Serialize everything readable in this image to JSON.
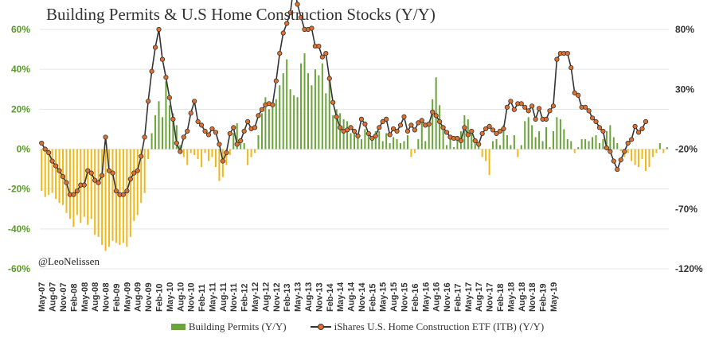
{
  "chart_data": {
    "type": "bar+line",
    "title": "Building Permits  & U.S Home Construction Stocks (Y/Y)",
    "annotation": "@LeoNelissen",
    "x_tick_labels": [
      "May-07",
      "Aug-07",
      "Nov-07",
      "Feb-08",
      "May-08",
      "Aug-08",
      "Nov-08",
      "Feb-09",
      "May-09",
      "Aug-09",
      "Nov-09",
      "Feb-10",
      "May-10",
      "Aug-10",
      "Nov-10",
      "Feb-11",
      "May-11",
      "Aug-11",
      "Nov-11",
      "Feb-12",
      "May-12",
      "Aug-12",
      "Nov-12",
      "Feb-13",
      "May-13",
      "Aug-13",
      "Nov-13",
      "Feb-14",
      "May-14",
      "Aug-14",
      "Nov-14",
      "Feb-15",
      "May-15",
      "Aug-15",
      "Nov-15",
      "Feb-16",
      "May-16",
      "Aug-16",
      "Nov-16",
      "Feb-17",
      "May-17",
      "Aug-17",
      "Nov-17",
      "Feb-18",
      "May-18",
      "Aug-18",
      "Nov-18",
      "Feb-19",
      "May-19"
    ],
    "left_axis": {
      "ticks": [
        "60%",
        "40%",
        "20%",
        "0%",
        "-20%",
        "-40%",
        "-60%"
      ],
      "ylim": [
        -60,
        60
      ]
    },
    "right_axis": {
      "ticks": [
        "80%",
        "30%",
        "-20%",
        "-70%",
        "-120%"
      ],
      "ylim": [
        -120,
        80
      ]
    },
    "colors": {
      "positive_bar": "#6aa43a",
      "negative_bar": "#f2b818",
      "line": "#333333",
      "marker": "#e0702d"
    },
    "series": [
      {
        "name": "Building Permits (Y/Y)",
        "axis": "left",
        "type": "bar",
        "values": [
          -21,
          -24,
          -23,
          -22,
          -25,
          -27,
          -28,
          -32,
          -35,
          -39,
          -33,
          -37,
          -34,
          -38,
          -35,
          -43,
          -44,
          -48,
          -51,
          -49,
          -46,
          -47,
          -48,
          -47,
          -49,
          -44,
          -36,
          -33,
          -27,
          -22,
          -5,
          8,
          17,
          24,
          16,
          34,
          22,
          18,
          12,
          2,
          -4,
          -8,
          -2,
          -3,
          -5,
          -9,
          -2,
          -6,
          -4,
          -9,
          -16,
          -14,
          -8,
          -3,
          8,
          13,
          5,
          3,
          -8,
          -4,
          -2,
          7,
          18,
          26,
          20,
          23,
          25,
          32,
          38,
          45,
          30,
          27,
          26,
          43,
          48,
          38,
          32,
          40,
          37,
          43,
          28,
          37,
          17,
          20,
          18,
          15,
          14,
          8,
          8,
          6,
          5,
          10,
          7,
          6,
          9,
          9,
          4,
          8,
          3,
          6,
          5,
          3,
          4,
          7,
          -4,
          -2,
          5,
          14,
          4,
          12,
          25,
          36,
          22,
          10,
          2,
          6,
          1,
          6,
          9,
          17,
          15,
          8,
          4,
          2,
          -4,
          -6,
          -13,
          4,
          5,
          2,
          12,
          7,
          2,
          7,
          -4,
          2,
          14,
          16,
          12,
          6,
          9,
          4,
          11,
          1,
          9,
          16,
          15,
          10,
          5,
          4,
          -2,
          1,
          5,
          5,
          4,
          6,
          7,
          3,
          5,
          9,
          12,
          6,
          3,
          -1,
          -4,
          -2,
          -6,
          -8,
          -9,
          -5,
          -11,
          -9,
          -4,
          -2,
          3,
          -2,
          1
        ]
      },
      {
        "name": "iShares U.S. Home Construction ETF (ITB) (Y/Y)",
        "axis": "right",
        "type": "line",
        "values": [
          -15,
          -20,
          -23,
          -30,
          -34,
          -38,
          -43,
          -48,
          -58,
          -58,
          -55,
          -50,
          -50,
          -38,
          -40,
          -46,
          -48,
          -42,
          -10,
          -38,
          -40,
          -55,
          -58,
          -58,
          -55,
          -45,
          -40,
          -38,
          -26,
          -10,
          20,
          45,
          65,
          80,
          55,
          40,
          23,
          5,
          -15,
          -22,
          -10,
          -5,
          10,
          20,
          3,
          0,
          -5,
          -8,
          -3,
          -6,
          -16,
          -30,
          -23,
          -7,
          -2,
          -16,
          -13,
          -5,
          3,
          -3,
          -2,
          8,
          13,
          17,
          18,
          17,
          37,
          60,
          77,
          85,
          94,
          117,
          101,
          90,
          80,
          80,
          81,
          66,
          66,
          57,
          60,
          39,
          19,
          7,
          -2,
          -5,
          -4,
          -2,
          -5,
          -9,
          5,
          1,
          -7,
          -11,
          -9,
          -2,
          3,
          5,
          -8,
          -3,
          -5,
          0,
          7,
          -5,
          0,
          -4,
          2,
          4,
          0,
          1,
          11,
          8,
          3,
          -2,
          -6,
          -10,
          -11,
          -11,
          -13,
          -2,
          -8,
          -5,
          -13,
          -16,
          -7,
          -3,
          -1,
          -4,
          -7,
          -5,
          -3,
          15,
          20,
          13,
          18,
          18,
          15,
          12,
          16,
          5,
          14,
          5,
          5,
          12,
          16,
          55,
          60,
          60,
          60,
          48,
          27,
          25,
          15,
          15,
          12,
          6,
          3,
          -2,
          -5,
          -19,
          -22,
          -30,
          -37,
          -29,
          -22,
          -15,
          -12,
          -1,
          -6,
          -3,
          3
        ]
      }
    ]
  },
  "legend": {
    "bar_label": "Building Permits (Y/Y)",
    "line_label": "iShares U.S. Home Construction ETF (ITB) (Y/Y)"
  }
}
